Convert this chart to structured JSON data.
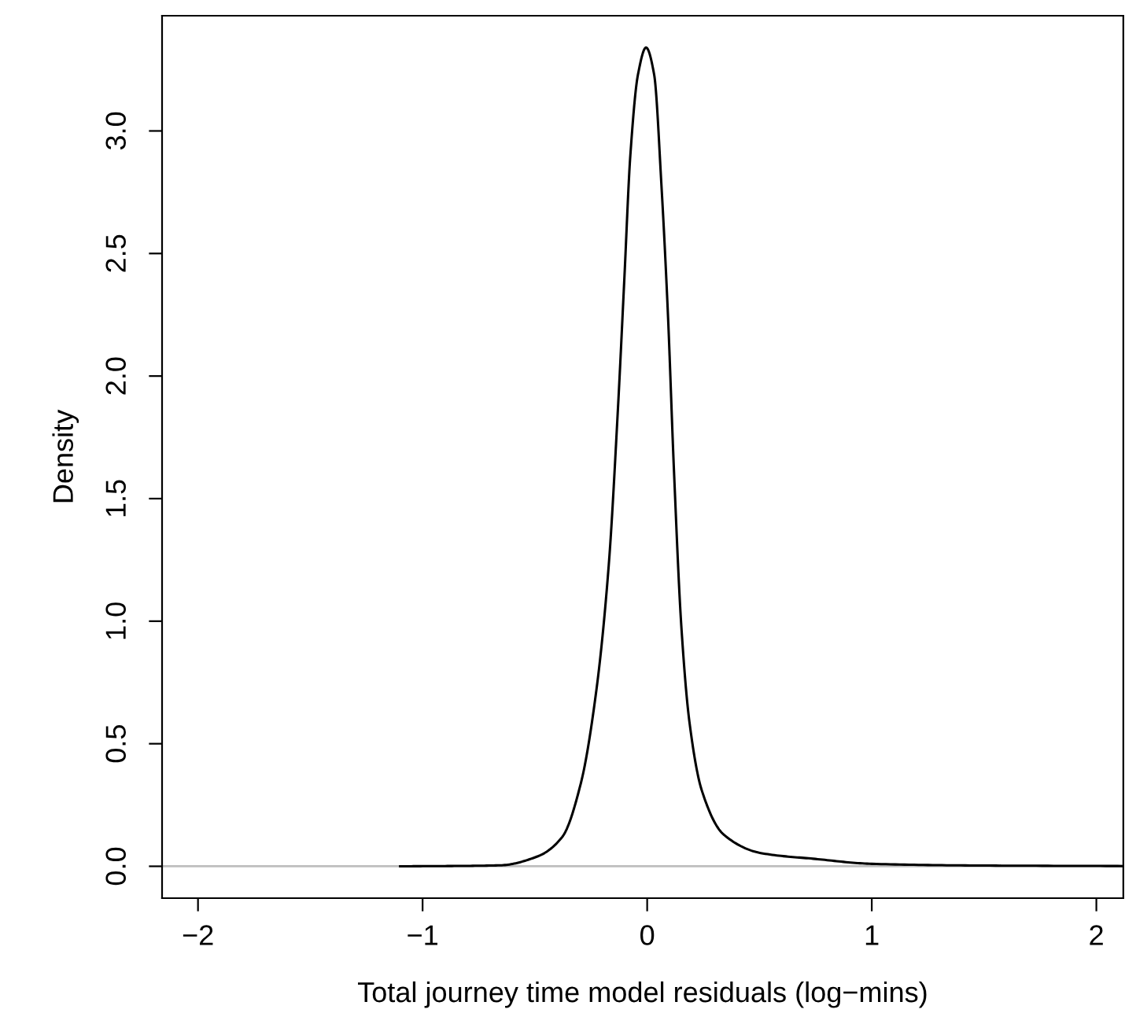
{
  "chart_data": {
    "type": "line",
    "xlabel": "Total journey time model residuals (log−mins)",
    "ylabel": "Density",
    "series": [
      {
        "color": "#000000",
        "x": [
          -1.1,
          -0.9,
          -0.654,
          -0.489,
          -0.378,
          -0.295,
          -0.226,
          -0.171,
          -0.13,
          -0.102,
          -0.075,
          -0.041,
          -0.005,
          0.031,
          0.064,
          0.092,
          0.119,
          0.152,
          0.188,
          0.243,
          0.34,
          0.506,
          0.749,
          1.0,
          1.5,
          2.12
        ],
        "values": [
          0,
          0.001,
          0.004,
          0.04,
          0.12,
          0.34,
          0.72,
          1.23,
          1.87,
          2.39,
          2.9,
          3.23,
          3.34,
          3.23,
          2.77,
          2.26,
          1.62,
          0.98,
          0.59,
          0.31,
          0.13,
          0.054,
          0.03,
          0.01,
          0.003,
          0.001
        ]
      }
    ],
    "xlim": [
      -2.16,
      2.12
    ],
    "xticks": [
      -2,
      -1,
      0,
      1,
      2
    ],
    "ylim": [
      -0.13,
      3.47
    ],
    "yticks": [
      {
        "value": 0,
        "label": "0.0"
      },
      0.5,
      {
        "value": 1,
        "label": "1.0"
      },
      1.5,
      {
        "value": 2,
        "label": "2.0"
      },
      2.5,
      {
        "value": 3,
        "label": "3.0"
      }
    ],
    "ref_lines": [
      {
        "axis": "y",
        "value": 0,
        "color": "#bebebe"
      }
    ],
    "grid": false,
    "legend": false,
    "marker": "none",
    "line_style": "solid"
  }
}
